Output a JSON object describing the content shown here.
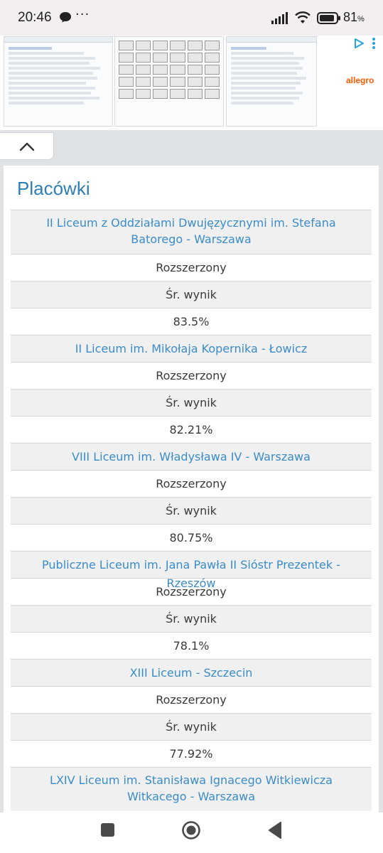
{
  "status_bar": {
    "time": "20:46",
    "more": "···",
    "battery_percent": "81",
    "battery_unit": "%"
  },
  "ad": {
    "brand": "allegro",
    "play_icon": "ad-choices-icon",
    "menu_icon": "vertical-dots-icon"
  },
  "collapse": {
    "icon": "chevron-up-icon"
  },
  "card": {
    "title": "Placówki",
    "schools": [
      {
        "name": "II Liceum z Oddziałami Dwujęzycznymi im. Stefana Batorego - Warszawa",
        "level": "Rozszerzony",
        "metric_label": "Śr. wynik",
        "score": "83.5%"
      },
      {
        "name": "II Liceum im. Mikołaja Kopernika - Łowicz",
        "level": "Rozszerzony",
        "metric_label": "Śr. wynik",
        "score": "82.21%"
      },
      {
        "name": "VIII Liceum im. Władysława IV - Warszawa",
        "level": "Rozszerzony",
        "metric_label": "Śr. wynik",
        "score": "80.75%"
      },
      {
        "name": "Publiczne Liceum im. Jana Pawła II Sióstr Prezentek - Rzeszów",
        "level": "Rozszerzony",
        "metric_label": "Śr. wynik",
        "score": "78.1%"
      },
      {
        "name": "XIII Liceum - Szczecin",
        "level": "Rozszerzony",
        "metric_label": "Śr. wynik",
        "score": "77.92%"
      },
      {
        "name": "LXIV Liceum im. Stanisława Ignacego Witkiewicza Witkacego - Warszawa"
      }
    ]
  },
  "colors": {
    "accent": "#3a8cc8",
    "title": "#2f7fb6",
    "row_grey": "#f0f0f0",
    "page_bg": "#dfe3e6"
  }
}
